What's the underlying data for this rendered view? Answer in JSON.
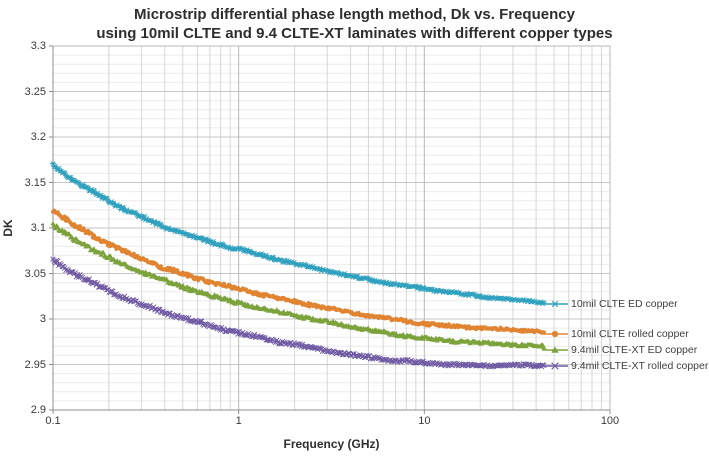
{
  "title": {
    "line1": "Microstrip differential phase length method, Dk vs. Frequency",
    "line2": "using 10mil CLTE and 9.4 CLTE-XT laminates with different copper types"
  },
  "axes": {
    "x_label": "Frequency (GHz)",
    "y_label": "DK"
  },
  "chart_data": {
    "type": "line",
    "x_scale": "log",
    "xlabel": "Frequency (GHz)",
    "ylabel": "DK",
    "xlim": [
      0.1,
      100
    ],
    "ylim": [
      2.9,
      3.3
    ],
    "x_tick_values": [
      0.1,
      1,
      10,
      100
    ],
    "x_tick_labels": [
      "0.1",
      "1",
      "10",
      "100"
    ],
    "y_tick_major_step": 0.05,
    "y_tick_minor_step": 0.01,
    "y_tick_labels": [
      "3.3",
      "3.25",
      "3.2",
      "3.15",
      "3.1",
      "3.05",
      "3",
      "2.95",
      "2.9"
    ],
    "grid": {
      "major": true,
      "minor": true
    },
    "data_f_range_ghz": [
      0.1,
      44
    ],
    "points_per_series": 420,
    "noise_amplitude_dk": 0.0015,
    "legend_position": "inside-right-at-line-ends",
    "series": [
      {
        "name": "10mil CLTE ED copper",
        "color": "#2FA0BE",
        "marker": "asterisk",
        "anchors_f": [
          0.1,
          0.13,
          0.17,
          0.22,
          0.3,
          0.4,
          0.55,
          0.75,
          1.0,
          1.4,
          2,
          3,
          4.5,
          6.5,
          10,
          14,
          20,
          30,
          44
        ],
        "anchors_dk": [
          3.17,
          3.152,
          3.138,
          3.125,
          3.112,
          3.101,
          3.092,
          3.083,
          3.077,
          3.069,
          3.061,
          3.053,
          3.045,
          3.039,
          3.033,
          3.029,
          3.025,
          3.021,
          3.018
        ]
      },
      {
        "name": "10mil CLTE rolled copper",
        "color": "#E08432",
        "marker": "circle",
        "anchors_f": [
          0.1,
          0.13,
          0.17,
          0.22,
          0.3,
          0.4,
          0.55,
          0.75,
          1.0,
          1.4,
          2,
          3,
          4.5,
          6.5,
          10,
          14,
          20,
          30,
          44
        ],
        "anchors_dk": [
          3.12,
          3.103,
          3.09,
          3.078,
          3.066,
          3.056,
          3.047,
          3.039,
          3.033,
          3.026,
          3.019,
          3.012,
          3.005,
          3.0,
          2.995,
          2.992,
          2.99,
          2.988,
          2.986
        ]
      },
      {
        "name": "9.4mil CLTE-XT ED copper",
        "color": "#7CA23C",
        "marker": "triangle",
        "anchors_f": [
          0.1,
          0.13,
          0.17,
          0.22,
          0.3,
          0.4,
          0.55,
          0.75,
          1.0,
          1.4,
          2,
          3,
          4.5,
          6.5,
          10,
          14,
          20,
          30,
          44
        ],
        "anchors_dk": [
          3.103,
          3.088,
          3.075,
          3.063,
          3.052,
          3.042,
          3.033,
          3.024,
          3.018,
          3.011,
          3.004,
          2.997,
          2.99,
          2.984,
          2.979,
          2.976,
          2.974,
          2.972,
          2.97
        ]
      },
      {
        "name": "9.4mil CLTE-XT rolled copper",
        "color": "#6F5AA3",
        "marker": "x",
        "anchors_f": [
          0.1,
          0.13,
          0.17,
          0.22,
          0.3,
          0.4,
          0.55,
          0.75,
          1.0,
          1.4,
          2,
          3,
          4.5,
          6.5,
          10,
          14,
          20,
          30,
          44
        ],
        "anchors_dk": [
          3.065,
          3.05,
          3.038,
          3.027,
          3.016,
          3.007,
          2.999,
          2.991,
          2.985,
          2.978,
          2.972,
          2.965,
          2.959,
          2.955,
          2.952,
          2.95,
          2.949,
          2.949,
          2.949
        ]
      }
    ]
  }
}
